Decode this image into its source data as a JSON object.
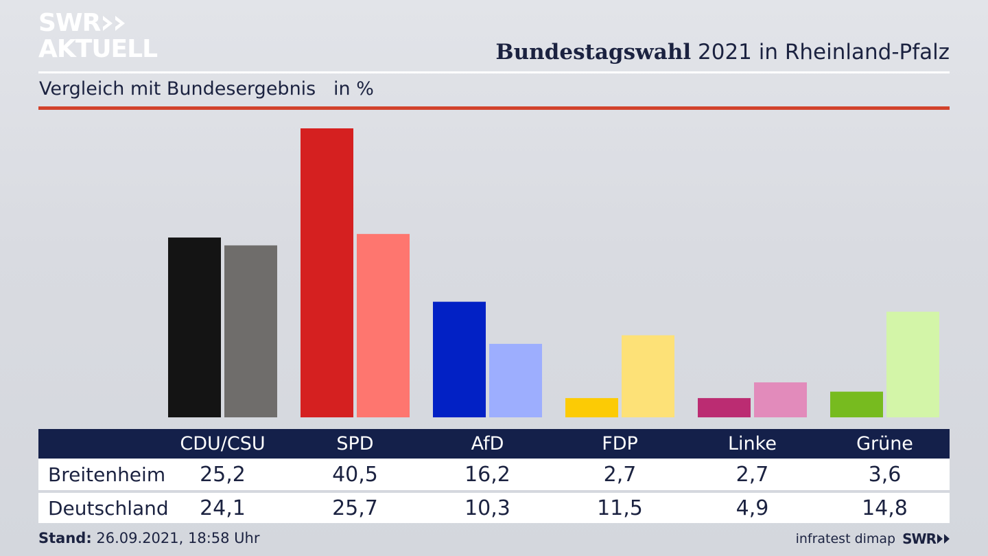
{
  "branding": {
    "logo_line1": "SWR",
    "logo_line2": "AKTUELL"
  },
  "header": {
    "title_bold": "Bundestagswahl",
    "title_rest": " 2021 in Rheinland-Pfalz",
    "subtitle": "Vergleich mit Bundesergebnis   in %"
  },
  "chart_data": {
    "type": "bar",
    "title": "Bundestagswahl 2021 in Rheinland-Pfalz",
    "subtitle": "Vergleich mit Bundesergebnis   in %",
    "categories": [
      "CDU/CSU",
      "SPD",
      "AfD",
      "FDP",
      "Linke",
      "Grüne"
    ],
    "series": [
      {
        "name": "Breitenheim",
        "values": [
          25.2,
          40.5,
          16.2,
          2.7,
          2.7,
          3.6
        ]
      },
      {
        "name": "Deutschland",
        "values": [
          24.1,
          25.7,
          10.3,
          11.5,
          4.9,
          14.8
        ]
      }
    ],
    "colors": {
      "Breitenheim": [
        "#141414",
        "#d52020",
        "#0221c5",
        "#fccb05",
        "#bb2c72",
        "#77bb1f"
      ],
      "Deutschland": [
        "#6f6d6b",
        "#fe766f",
        "#9daefe",
        "#fde177",
        "#e28bbb",
        "#d3f5a8"
      ]
    },
    "ylim": [
      0,
      40.5
    ],
    "grid": false,
    "legend": "none"
  },
  "table": {
    "headers": [
      "CDU/CSU",
      "SPD",
      "AfD",
      "FDP",
      "Linke",
      "Grüne"
    ],
    "rows": [
      {
        "label": "Breitenheim",
        "values": [
          "25,2",
          "40,5",
          "16,2",
          "2,7",
          "2,7",
          "3,6"
        ]
      },
      {
        "label": "Deutschland",
        "values": [
          "24,1",
          "25,7",
          "10,3",
          "11,5",
          "4,9",
          "14,8"
        ]
      }
    ]
  },
  "footer": {
    "stand_label": "Stand:",
    "stand_value": " 26.09.2021, 18:58 Uhr",
    "source": "infratest dimap",
    "brand": "SWR"
  }
}
